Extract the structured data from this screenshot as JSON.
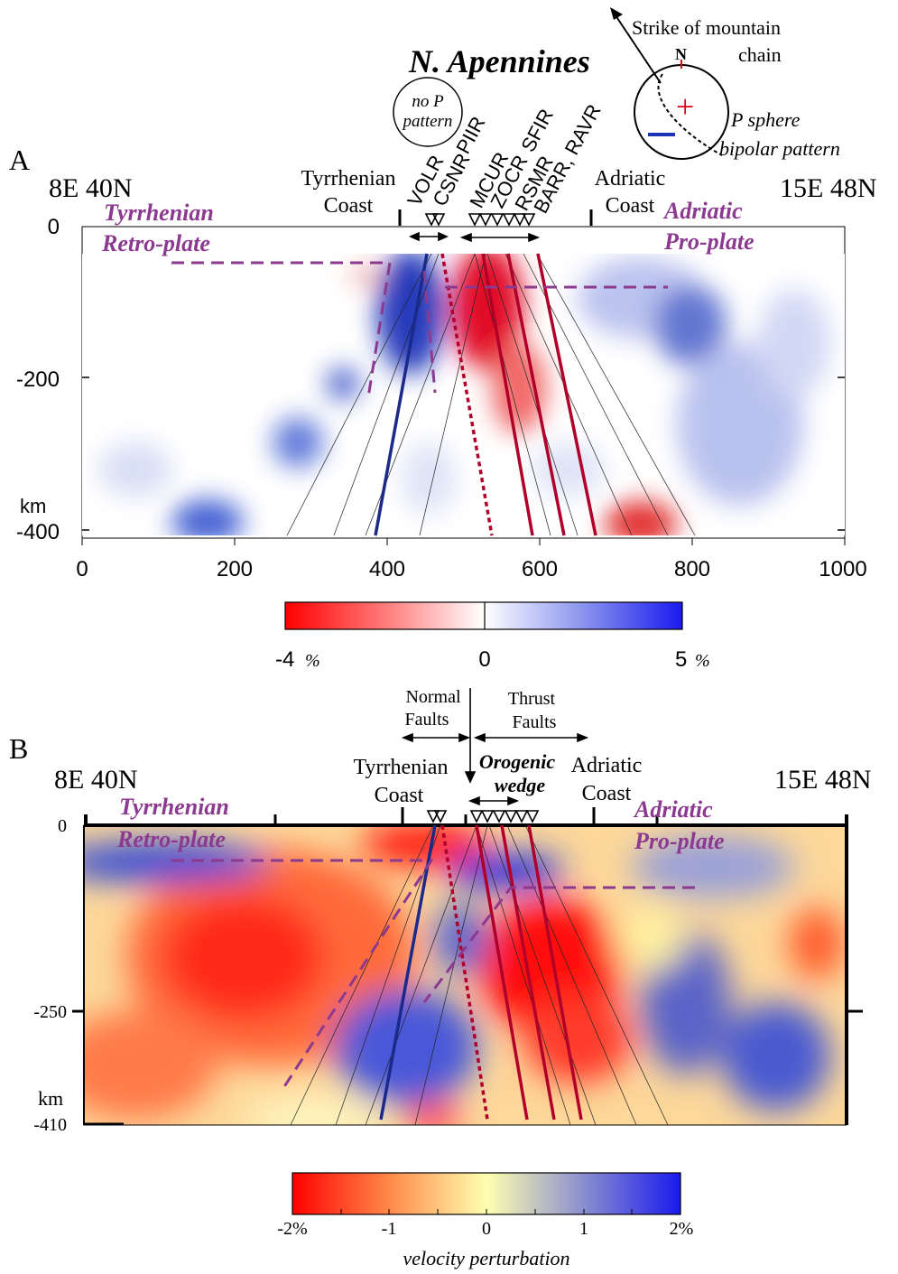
{
  "figure_title": "N. Apennines",
  "inset": {
    "strike_label_1": "Strike of mountain",
    "strike_label_2": "chain",
    "north": "N",
    "sphere_label_1": "P sphere",
    "sphere_label_2": "bipolar pattern",
    "no_p_1": "no P",
    "no_p_2": "pattern"
  },
  "panel_a": {
    "letter": "A",
    "left_corner": "8E 40N",
    "right_corner": "15E 48N",
    "tyrrhenian_coast_1": "Tyrrhenian",
    "tyrrhenian_coast_2": "Coast",
    "adriatic_coast_1": "Adriatic",
    "adriatic_coast_2": "Coast",
    "retro_1": "Tyrrhenian",
    "retro_2": "Retro-plate",
    "pro_1": "Adriatic",
    "pro_2": "Pro-plate",
    "km_unit": "km",
    "y_ticks": [
      "0",
      "-200",
      "-400"
    ],
    "x_ticks": [
      "0",
      "200",
      "400",
      "600",
      "800",
      "1000"
    ],
    "stations": [
      "VOLR",
      "CSNR",
      "PIIR",
      "MCUR",
      "ZOCR",
      "SFIR",
      "RSMR",
      "BARR, RAVR"
    ],
    "colorbar_min": "-4",
    "colorbar_mid": "0",
    "colorbar_max": "5",
    "colorbar_unit": "%"
  },
  "panel_b": {
    "letter": "B",
    "left_corner": "8E 40N",
    "right_corner": "15E 48N",
    "normal_faults_1": "Normal",
    "normal_faults_2": "Faults",
    "thrust_faults_1": "Thrust",
    "thrust_faults_2": "Faults",
    "orogenic_1": "Orogenic",
    "orogenic_2": "wedge",
    "tyrrhenian_coast_1": "Tyrrhenian",
    "tyrrhenian_coast_2": "Coast",
    "adriatic_coast_1": "Adriatic",
    "adriatic_coast_2": "Coast",
    "retro_1": "Tyrrhenian",
    "retro_2": "Retro-plate",
    "pro_1": "Adriatic",
    "pro_2": "Pro-plate",
    "km_unit": "km",
    "y_ticks": [
      "0",
      "-250",
      "-410"
    ],
    "colorbar_ticks": [
      "-2%",
      "-1",
      "0",
      "1",
      "2%"
    ],
    "colorbar_label": "velocity perturbation"
  },
  "colors": {
    "red": "#e0001a",
    "blue": "#1a33b8",
    "purple": "#8b3a8f",
    "fault_red": "#b0002a",
    "fault_blue": "#1a2a8a"
  }
}
